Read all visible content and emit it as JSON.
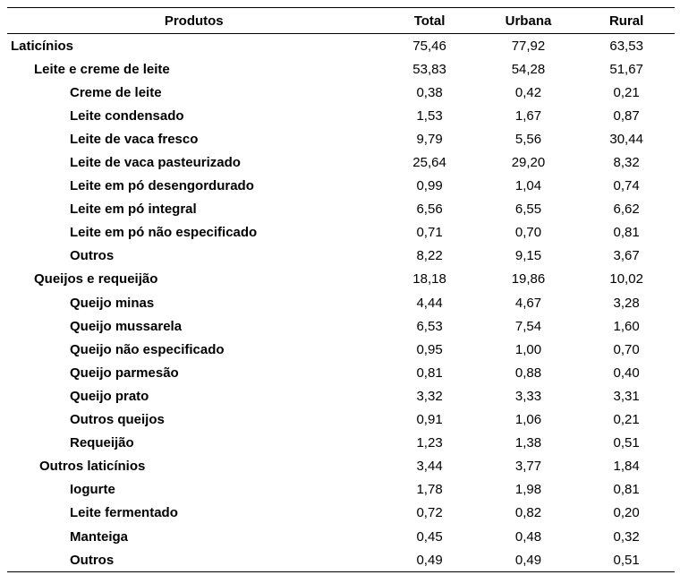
{
  "table": {
    "headers": {
      "produtos": "Produtos",
      "total": "Total",
      "urbana": "Urbana",
      "rural": "Rural"
    },
    "rows": [
      {
        "label": "Laticínios",
        "level": 0,
        "total": "75,46",
        "urbana": "77,92",
        "rural": "63,53"
      },
      {
        "label": "Leite e creme de leite",
        "level": 1,
        "total": "53,83",
        "urbana": "54,28",
        "rural": "51,67"
      },
      {
        "label": "Creme de leite",
        "level": 2,
        "total": "0,38",
        "urbana": "0,42",
        "rural": "0,21"
      },
      {
        "label": "Leite condensado",
        "level": 2,
        "total": "1,53",
        "urbana": "1,67",
        "rural": "0,87"
      },
      {
        "label": "Leite de vaca fresco",
        "level": 2,
        "total": "9,79",
        "urbana": "5,56",
        "rural": "30,44"
      },
      {
        "label": "Leite de vaca pasteurizado",
        "level": 2,
        "total": "25,64",
        "urbana": "29,20",
        "rural": "8,32"
      },
      {
        "label": "Leite em pó desengordurado",
        "level": 2,
        "total": "0,99",
        "urbana": "1,04",
        "rural": "0,74"
      },
      {
        "label": "Leite em pó integral",
        "level": 2,
        "total": "6,56",
        "urbana": "6,55",
        "rural": "6,62"
      },
      {
        "label": "Leite em pó não especificado",
        "level": 2,
        "total": "0,71",
        "urbana": "0,70",
        "rural": "0,81"
      },
      {
        "label": "Outros",
        "level": 2,
        "total": "8,22",
        "urbana": "9,15",
        "rural": "3,67"
      },
      {
        "label": "Queijos e requeijão",
        "level": 1,
        "total": "18,18",
        "urbana": "19,86",
        "rural": "10,02"
      },
      {
        "label": "Queijo minas",
        "level": 2,
        "total": "4,44",
        "urbana": "4,67",
        "rural": "3,28"
      },
      {
        "label": "Queijo mussarela",
        "level": 2,
        "total": "6,53",
        "urbana": "7,54",
        "rural": "1,60"
      },
      {
        "label": "Queijo não especificado",
        "level": 2,
        "total": "0,95",
        "urbana": "1,00",
        "rural": "0,70"
      },
      {
        "label": "Queijo parmesão",
        "level": 2,
        "total": "0,81",
        "urbana": "0,88",
        "rural": "0,40"
      },
      {
        "label": "Queijo prato",
        "level": 2,
        "total": "3,32",
        "urbana": "3,33",
        "rural": "3,31"
      },
      {
        "label": "Outros queijos",
        "level": 2,
        "total": "0,91",
        "urbana": "1,06",
        "rural": "0,21"
      },
      {
        "label": "Requeijão",
        "level": 2,
        "total": "1,23",
        "urbana": "1,38",
        "rural": "0,51"
      },
      {
        "label": "Outros laticínios",
        "level": 1,
        "total": "3,44",
        "urbana": "3,77",
        "rural": "1,84"
      },
      {
        "label": "Iogurte",
        "level": 2,
        "total": "1,78",
        "urbana": "1,98",
        "rural": "0,81"
      },
      {
        "label": "Leite fermentado",
        "level": 2,
        "total": "0,72",
        "urbana": "0,82",
        "rural": "0,20"
      },
      {
        "label": "Manteiga",
        "level": 2,
        "total": "0,45",
        "urbana": "0,48",
        "rural": "0,32"
      },
      {
        "label": "Outros",
        "level": 2,
        "total": "0,49",
        "urbana": "0,49",
        "rural": "0,51"
      }
    ]
  }
}
